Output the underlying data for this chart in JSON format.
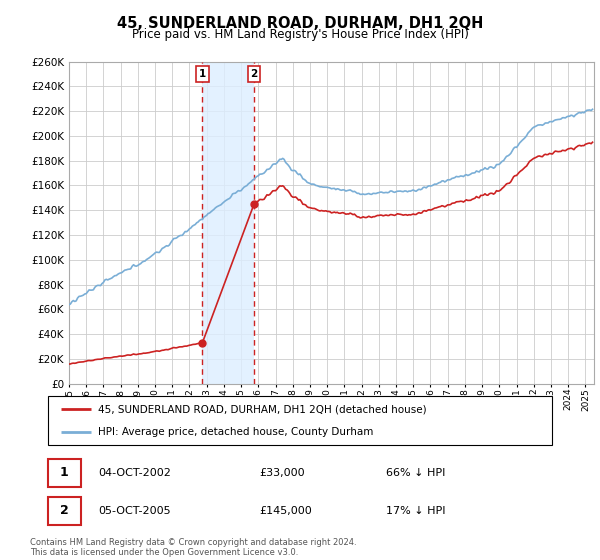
{
  "title": "45, SUNDERLAND ROAD, DURHAM, DH1 2QH",
  "subtitle": "Price paid vs. HM Land Registry's House Price Index (HPI)",
  "sale1_price": 33000,
  "sale1_display": "04-OCT-2002",
  "sale1_pct": "66% ↓ HPI",
  "sale2_price": 145000,
  "sale2_display": "05-OCT-2005",
  "sale2_pct": "17% ↓ HPI",
  "legend_property": "45, SUNDERLAND ROAD, DURHAM, DH1 2QH (detached house)",
  "legend_hpi": "HPI: Average price, detached house, County Durham",
  "footnote": "Contains HM Land Registry data © Crown copyright and database right 2024.\nThis data is licensed under the Open Government Licence v3.0.",
  "property_color": "#cc2222",
  "hpi_color": "#7aaed6",
  "shade_color": "#ddeeff",
  "vline_color": "#cc2222",
  "grid_color": "#cccccc",
  "ylim": [
    0,
    260000
  ],
  "ytick_step": 20000,
  "sale1_year": 2002.75,
  "sale2_year": 2005.75,
  "xmin": 1995.0,
  "xmax": 2025.5
}
